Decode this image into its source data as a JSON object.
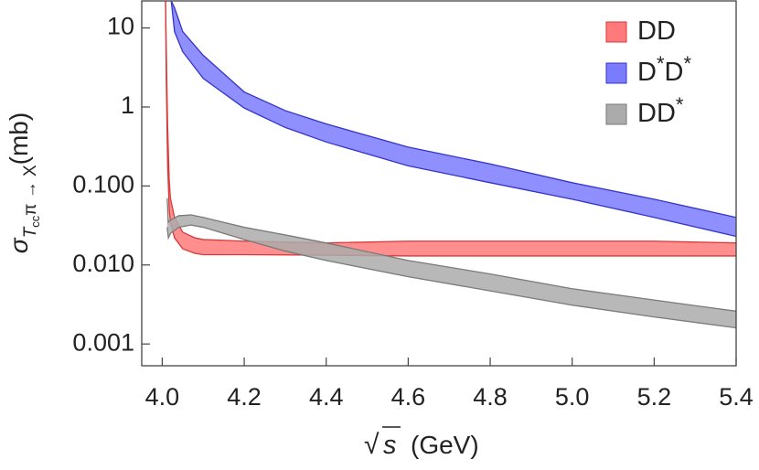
{
  "chart_data": {
    "type": "band",
    "ylabel": [
      "σ",
      "T",
      "cc",
      "π → X",
      "(mb)"
    ],
    "xlabel": [
      "√",
      "s",
      "(GeV)"
    ],
    "xlim": [
      3.95,
      5.4
    ],
    "xticks": [
      {
        "value": 4,
        "label": "4.0"
      },
      4.2,
      4.4,
      4.6,
      4.8,
      {
        "value": 5,
        "label": "5.0"
      },
      5.2,
      5.4
    ],
    "ylim": [
      0.00053,
      22
    ],
    "log_y": true,
    "yticks": [
      {
        "value": 0.001,
        "label": "0.001"
      },
      {
        "value": 0.01,
        "label": "0.010"
      },
      {
        "value": 0.1,
        "label": "0.100"
      },
      1,
      10
    ],
    "legend": "upper right",
    "series": [
      {
        "name": "DD",
        "color": "#ff7b7b",
        "edge": "#d83a3a",
        "x": [
          4.008,
          4.01,
          4.013,
          4.017,
          4.02,
          4.03,
          4.05,
          4.08,
          4.1,
          4.2,
          4.4,
          4.6,
          4.8,
          5.0,
          5.2,
          5.4
        ],
        "upper": [
          22,
          5,
          0.6,
          0.12,
          0.07,
          0.04,
          0.026,
          0.022,
          0.021,
          0.02,
          0.019,
          0.02,
          0.02,
          0.02,
          0.02,
          0.019
        ],
        "lower": [
          22,
          2,
          0.2,
          0.05,
          0.035,
          0.022,
          0.016,
          0.014,
          0.0135,
          0.0135,
          0.0133,
          0.013,
          0.013,
          0.013,
          0.013,
          0.013
        ]
      },
      {
        "name": "D*D*",
        "color": "#7b7bff",
        "edge": "#3434c8",
        "x": [
          4.022,
          4.03,
          4.05,
          4.1,
          4.2,
          4.3,
          4.4,
          4.6,
          4.8,
          5.0,
          5.2,
          5.4
        ],
        "upper": [
          22,
          18,
          9,
          4.5,
          1.55,
          0.9,
          0.61,
          0.31,
          0.19,
          0.11,
          0.068,
          0.04
        ],
        "lower": [
          22,
          9,
          5,
          2.3,
          0.97,
          0.55,
          0.36,
          0.18,
          0.11,
          0.068,
          0.04,
          0.023
        ]
      },
      {
        "name": "DD*",
        "color": "#ababab",
        "edge": "#7a7a7a",
        "x": [
          4.012,
          4.015,
          4.02,
          4.04,
          4.07,
          4.1,
          4.2,
          4.3,
          4.4,
          4.6,
          4.8,
          5.0,
          5.2,
          5.4
        ],
        "upper": [
          0.07,
          0.035,
          0.037,
          0.042,
          0.043,
          0.04,
          0.03,
          0.024,
          0.019,
          0.0114,
          0.0077,
          0.005,
          0.0036,
          0.0026
        ],
        "lower": [
          0.03,
          0.022,
          0.025,
          0.03,
          0.032,
          0.03,
          0.021,
          0.015,
          0.0114,
          0.0071,
          0.0047,
          0.0031,
          0.0022,
          0.0016
        ]
      }
    ]
  }
}
